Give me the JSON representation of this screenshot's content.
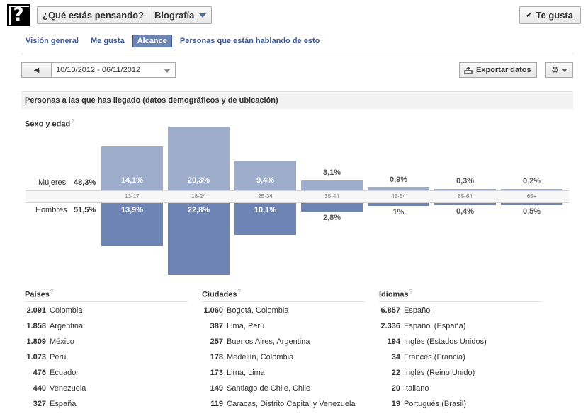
{
  "header": {
    "page_icon_glyph": "?",
    "selector_question": "¿Qué estás pensando?",
    "selector_view": "Biografía",
    "like_button": "Te gusta"
  },
  "tabs": [
    {
      "label": "Visión general",
      "active": false
    },
    {
      "label": "Me gusta",
      "active": false
    },
    {
      "label": "Alcance",
      "active": true
    },
    {
      "label": "Personas que están hablando de esto",
      "active": false
    }
  ],
  "toolbar": {
    "prev_glyph": "◀",
    "date_range": "10/10/2012 - 06/11/2012",
    "export_label": "Exportar datos",
    "export_icon": "export-icon",
    "gear_icon": "gear-icon"
  },
  "section": {
    "title": "Personas a las que has llegado (datos demográficos y de ubicación)",
    "help_glyph": "?"
  },
  "chart_data": {
    "type": "bar",
    "title": "Sexo y edad",
    "categories": [
      "13-17",
      "18-24",
      "25-34",
      "35-44",
      "45-54",
      "55-64",
      "65+"
    ],
    "series": [
      {
        "name": "Mujeres",
        "total": "48,3%",
        "color": "#9eadcb",
        "values": [
          14.1,
          20.3,
          9.4,
          3.1,
          0.9,
          0.3,
          0.2
        ],
        "labels": [
          "14,1%",
          "20,3%",
          "9,4%",
          "3,1%",
          "0,9%",
          "0,3%",
          "0,2%"
        ]
      },
      {
        "name": "Hombres",
        "total": "51,5%",
        "color": "#6d84b4",
        "values": [
          13.9,
          22.8,
          10.1,
          2.8,
          1.0,
          0.4,
          0.5
        ],
        "labels": [
          "13,9%",
          "22,8%",
          "10,1%",
          "2,8%",
          "1%",
          "0,4%",
          "0,5%"
        ]
      }
    ]
  },
  "lists": {
    "countries": {
      "title": "Países",
      "rows": [
        {
          "count": "2.091",
          "name": "Colombia"
        },
        {
          "count": "1.858",
          "name": "Argentina"
        },
        {
          "count": "1.809",
          "name": "México"
        },
        {
          "count": "1.073",
          "name": "Perú"
        },
        {
          "count": "476",
          "name": "Ecuador"
        },
        {
          "count": "440",
          "name": "Venezuela"
        },
        {
          "count": "327",
          "name": "España"
        }
      ]
    },
    "cities": {
      "title": "Ciudades",
      "rows": [
        {
          "count": "1.060",
          "name": "Bogotá, Colombia"
        },
        {
          "count": "387",
          "name": "Lima, Perú"
        },
        {
          "count": "257",
          "name": "Buenos Aires, Argentina"
        },
        {
          "count": "178",
          "name": "Medellín, Colombia"
        },
        {
          "count": "173",
          "name": "Lima, Lima"
        },
        {
          "count": "149",
          "name": "Santiago de Chile, Chile"
        },
        {
          "count": "119",
          "name": "Caracas, Distrito Capital y Venezuela"
        }
      ]
    },
    "languages": {
      "title": "Idiomas",
      "rows": [
        {
          "count": "6.857",
          "name": "Español"
        },
        {
          "count": "2.336",
          "name": "Español (España)"
        },
        {
          "count": "194",
          "name": "Inglés (Estados Unidos)"
        },
        {
          "count": "34",
          "name": "Francés (Francia)"
        },
        {
          "count": "22",
          "name": "Inglés (Reino Unido)"
        },
        {
          "count": "20",
          "name": "Italiano"
        },
        {
          "count": "19",
          "name": "Portugués (Brasil)"
        }
      ]
    }
  }
}
